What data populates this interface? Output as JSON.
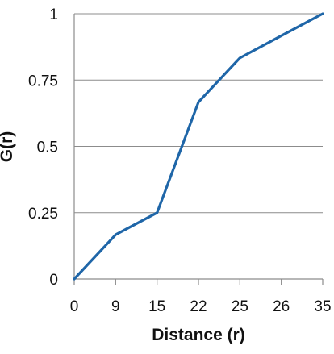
{
  "chart_data": {
    "type": "line",
    "title": "",
    "xlabel": "Distance (r)",
    "ylabel": "G(r)",
    "categories": [
      "0",
      "9",
      "15",
      "22",
      "25",
      "26",
      "35"
    ],
    "series": [
      {
        "values": [
          0,
          0.167,
          0.25,
          0.667,
          0.833,
          0.917,
          1.0
        ],
        "color": "#1f66a8"
      }
    ],
    "ylim": [
      0,
      1
    ],
    "yticks": [
      {
        "value": 0,
        "label": "0"
      },
      {
        "value": 0.25,
        "label": "0.25"
      },
      {
        "value": 0.5,
        "label": "0.5"
      },
      {
        "value": 0.75,
        "label": "0.75"
      },
      {
        "value": 1,
        "label": "1"
      }
    ],
    "grid": "horizontal",
    "legend": "none"
  },
  "colors": {
    "line": "#1f66a8",
    "grid": "#8c8c8c",
    "text": "#111111"
  }
}
